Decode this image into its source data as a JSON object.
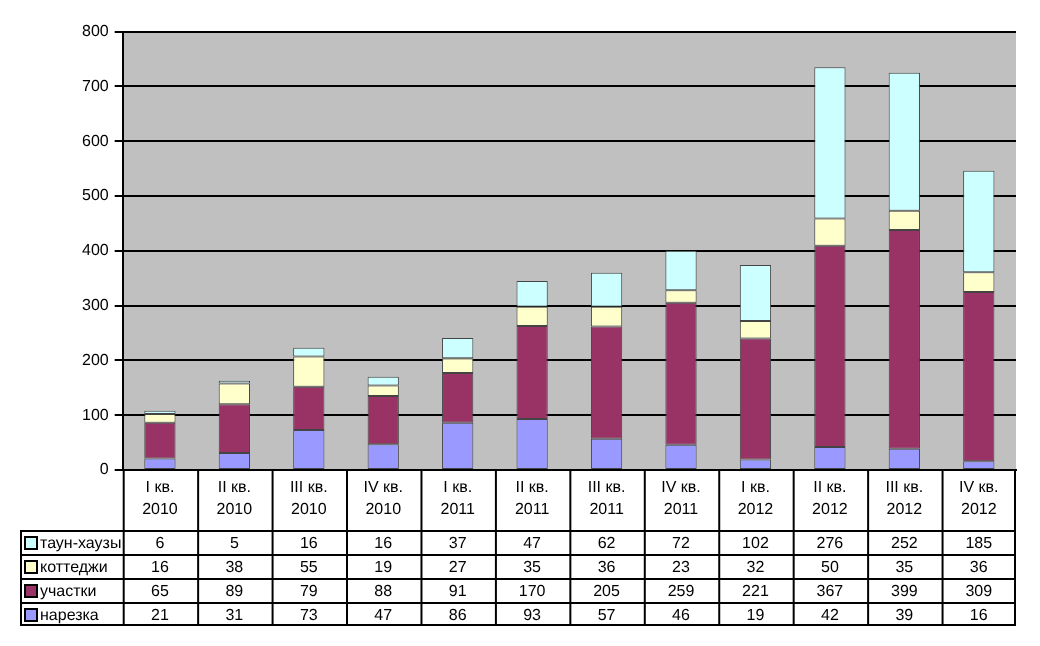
{
  "chart_data": {
    "type": "bar",
    "stacked": true,
    "categories": [
      "I кв. 2010",
      "II кв. 2010",
      "III кв. 2010",
      "IV кв. 2010",
      "I кв. 2011",
      "II кв. 2011",
      "III кв. 2011",
      "IV кв. 2011",
      "I кв. 2012",
      "II кв. 2012",
      "III кв. 2012",
      "IV кв. 2012"
    ],
    "series": [
      {
        "name": "нарезка",
        "color": "#9999ff",
        "values": [
          21,
          31,
          73,
          47,
          86,
          93,
          57,
          46,
          19,
          42,
          39,
          16
        ]
      },
      {
        "name": "участки",
        "color": "#993366",
        "values": [
          65,
          89,
          79,
          88,
          91,
          170,
          205,
          259,
          221,
          367,
          399,
          309
        ]
      },
      {
        "name": "коттеджи",
        "color": "#ffffcc",
        "values": [
          16,
          38,
          55,
          19,
          27,
          35,
          36,
          23,
          32,
          50,
          35,
          36
        ]
      },
      {
        "name": "таун-хаузы",
        "color": "#ccffff",
        "values": [
          6,
          5,
          16,
          16,
          37,
          47,
          62,
          72,
          102,
          276,
          252,
          185
        ]
      }
    ],
    "ylim": [
      0,
      800
    ],
    "yticks": [
      0,
      100,
      200,
      300,
      400,
      500,
      600,
      700,
      800
    ],
    "grid": "y",
    "legend": "bottom",
    "data_labels": true
  }
}
